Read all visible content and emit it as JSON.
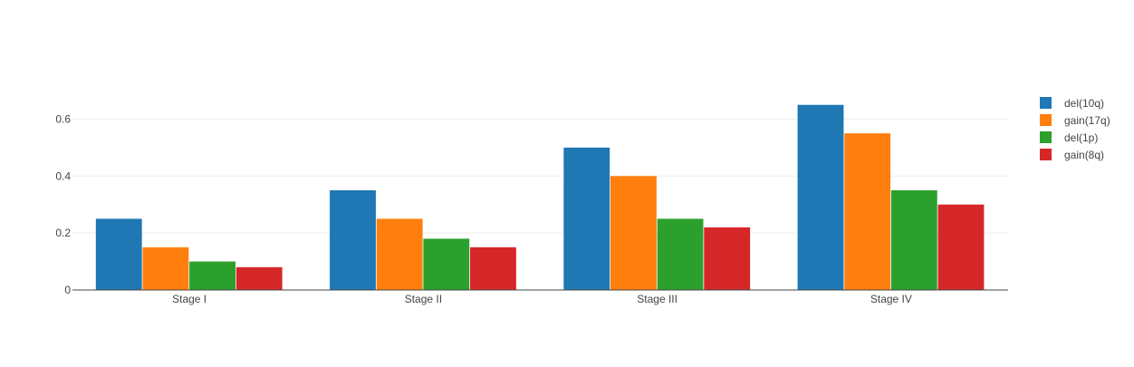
{
  "chart_data": {
    "type": "bar",
    "title": "",
    "xlabel": "",
    "ylabel": "",
    "categories": [
      "Stage I",
      "Stage II",
      "Stage III",
      "Stage IV"
    ],
    "ylim": [
      0,
      0.7
    ],
    "yticks": [
      0,
      0.2,
      0.4,
      0.6
    ],
    "ytick_labels": [
      "0",
      "0.2",
      "0.4",
      "0.6"
    ],
    "grid": true,
    "legend_position": "right",
    "series": [
      {
        "name": "del(10q)",
        "color": "#1f77b4",
        "values": [
          0.25,
          0.35,
          0.5,
          0.65
        ]
      },
      {
        "name": "gain(17q)",
        "color": "#ff7f0e",
        "values": [
          0.15,
          0.25,
          0.4,
          0.55
        ]
      },
      {
        "name": "del(1p)",
        "color": "#2ca02c",
        "values": [
          0.1,
          0.18,
          0.25,
          0.35
        ]
      },
      {
        "name": "gain(8q)",
        "color": "#d62728",
        "values": [
          0.08,
          0.15,
          0.22,
          0.3
        ]
      }
    ]
  }
}
